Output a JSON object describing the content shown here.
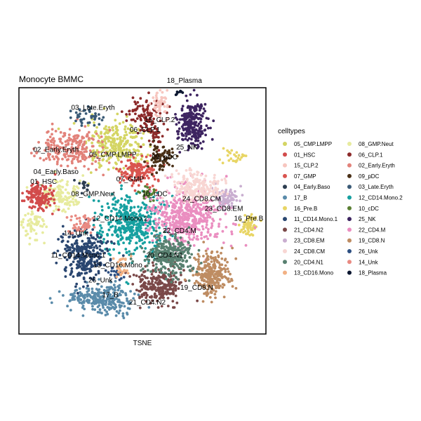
{
  "chart_data": {
    "type": "scatter",
    "title": "Monocyte BMMC",
    "xlabel": "TSNE",
    "ylabel": "",
    "xlim": [
      0,
      100
    ],
    "ylim": [
      0,
      100
    ],
    "grid": false,
    "legend": {
      "title": "celltypes",
      "placement": "right",
      "columns": 2
    },
    "series": [
      {
        "name": "05_CMP.LMPP",
        "color": "#D4D563",
        "clusters": [
          {
            "x": 40,
            "y": 76,
            "sx": 6,
            "sy": 5,
            "n": 260
          }
        ]
      },
      {
        "name": "08_GMP.Neut",
        "color": "#E7EB9E",
        "clusters": [
          {
            "x": 16,
            "y": 56,
            "sx": 4,
            "sy": 3,
            "n": 140
          },
          {
            "x": 6,
            "y": 44,
            "sx": 2.5,
            "sy": 3,
            "n": 60
          }
        ]
      },
      {
        "name": "01_HSC",
        "color": "#D24B4B",
        "clusters": [
          {
            "x": 8,
            "y": 56,
            "sx": 3,
            "sy": 3,
            "n": 150
          }
        ]
      },
      {
        "name": "06_CLP.1",
        "color": "#8C2A2A",
        "clusters": [
          {
            "x": 50,
            "y": 90,
            "sx": 3.5,
            "sy": 2.5,
            "n": 80
          },
          {
            "x": 54,
            "y": 82,
            "sx": 2,
            "sy": 3,
            "n": 50
          }
        ]
      },
      {
        "name": "15_CLP.2",
        "color": "#F7C6BF",
        "clusters": [
          {
            "x": 57,
            "y": 93,
            "sx": 2,
            "sy": 3,
            "n": 50
          }
        ]
      },
      {
        "name": "02_Early.Eryth",
        "color": "#E2827A",
        "clusters": [
          {
            "x": 22,
            "y": 76,
            "sx": 6,
            "sy": 4,
            "n": 220
          }
        ]
      },
      {
        "name": "07_GMP",
        "color": "#D9544F",
        "clusters": [
          {
            "x": 48,
            "y": 66,
            "sx": 3.5,
            "sy": 3,
            "n": 140
          }
        ]
      },
      {
        "name": "09_pDC",
        "color": "#4A3017",
        "clusters": [
          {
            "x": 57,
            "y": 72,
            "sx": 2.5,
            "sy": 3,
            "n": 80
          }
        ]
      },
      {
        "name": "04_Early.Baso",
        "color": "#2C3D50",
        "clusters": [
          {
            "x": 26,
            "y": 60,
            "sx": 1.5,
            "sy": 1.5,
            "n": 15
          }
        ]
      },
      {
        "name": "03_Late.Eryth",
        "color": "#3A5A76",
        "clusters": [
          {
            "x": 28,
            "y": 89,
            "sx": 3,
            "sy": 2,
            "n": 40
          }
        ]
      },
      {
        "name": "17_B",
        "color": "#5A8BAA",
        "clusters": [
          {
            "x": 36,
            "y": 14,
            "sx": 5,
            "sy": 3.5,
            "n": 200
          },
          {
            "x": 25,
            "y": 15,
            "sx": 4,
            "sy": 2,
            "n": 70
          }
        ]
      },
      {
        "name": "12_CD14.Mono.2",
        "color": "#16A0A0",
        "clusters": [
          {
            "x": 46,
            "y": 45,
            "sx": 6.5,
            "sy": 6,
            "n": 400
          }
        ]
      },
      {
        "name": "16_Pre.B",
        "color": "#E8D564",
        "clusters": [
          {
            "x": 93,
            "y": 44,
            "sx": 1.5,
            "sy": 2,
            "n": 70
          },
          {
            "x": 88,
            "y": 72,
            "sx": 3,
            "sy": 1.5,
            "n": 25
          }
        ]
      },
      {
        "name": "10_cDC",
        "color": "#5A7F33",
        "clusters": [
          {
            "x": 52,
            "y": 57,
            "sx": 1.5,
            "sy": 1.5,
            "n": 30
          }
        ]
      },
      {
        "name": "11_CD14.Mono.1",
        "color": "#2A4670",
        "clusters": [
          {
            "x": 27,
            "y": 32,
            "sx": 5,
            "sy": 5,
            "n": 300
          }
        ]
      },
      {
        "name": "25_NK",
        "color": "#3D2460",
        "clusters": [
          {
            "x": 70,
            "y": 85,
            "sx": 3,
            "sy": 4.5,
            "n": 250
          }
        ]
      },
      {
        "name": "21_CD4.N2",
        "color": "#7A4848",
        "clusters": [
          {
            "x": 57,
            "y": 20,
            "sx": 4.5,
            "sy": 3.5,
            "n": 260
          }
        ]
      },
      {
        "name": "22_CD4.M",
        "color": "#EA8EC0",
        "clusters": [
          {
            "x": 68,
            "y": 47,
            "sx": 7,
            "sy": 6,
            "n": 500
          }
        ]
      },
      {
        "name": "23_CD8.EM",
        "color": "#C9AED0",
        "clusters": [
          {
            "x": 84,
            "y": 56,
            "sx": 2.5,
            "sy": 2.5,
            "n": 80
          }
        ]
      },
      {
        "name": "19_CD8.N",
        "color": "#BE8C62",
        "clusters": [
          {
            "x": 78,
            "y": 24,
            "sx": 3.5,
            "sy": 4.5,
            "n": 260
          }
        ]
      },
      {
        "name": "24_CD8.CM",
        "color": "#F8D6D3",
        "clusters": [
          {
            "x": 72,
            "y": 60,
            "sx": 5,
            "sy": 3,
            "n": 200
          }
        ]
      },
      {
        "name": "26_Unk",
        "color": "#2D4F82",
        "clusters": [
          {
            "x": 40,
            "y": 24,
            "sx": 2,
            "sy": 1.5,
            "n": 20
          }
        ]
      },
      {
        "name": "20_CD4.N1",
        "color": "#588070",
        "clusters": [
          {
            "x": 61,
            "y": 32,
            "sx": 5,
            "sy": 4,
            "n": 300
          }
        ]
      },
      {
        "name": "14_Unk",
        "color": "#E98A82",
        "clusters": [
          {
            "x": 25,
            "y": 44,
            "sx": 2.5,
            "sy": 2,
            "n": 50
          }
        ]
      },
      {
        "name": "13_CD16.Mono",
        "color": "#F2B184",
        "clusters": [
          {
            "x": 42,
            "y": 28,
            "sx": 1.5,
            "sy": 2.5,
            "n": 30
          }
        ]
      },
      {
        "name": "18_Plasma",
        "color": "#0B1630",
        "clusters": [
          {
            "x": 65,
            "y": 98,
            "sx": 0.8,
            "sy": 0.8,
            "n": 8
          }
        ]
      }
    ],
    "cluster_labels": [
      {
        "text": "18_Plasma",
        "x": 67,
        "y": 102
      },
      {
        "text": "03_Late.Eryth",
        "x": 30,
        "y": 91
      },
      {
        "text": "15_CLP.2",
        "x": 57,
        "y": 86
      },
      {
        "text": "06_CLP.1",
        "x": 51,
        "y": 82
      },
      {
        "text": "02_Early.Eryth",
        "x": 15,
        "y": 74
      },
      {
        "text": "25_NK",
        "x": 68,
        "y": 75
      },
      {
        "text": "05_CMP.LMPP",
        "x": 38,
        "y": 72
      },
      {
        "text": "09_pDC",
        "x": 59,
        "y": 71
      },
      {
        "text": "04_Early.Baso",
        "x": 15,
        "y": 65
      },
      {
        "text": "07_GMP",
        "x": 45,
        "y": 62
      },
      {
        "text": "01_HSC",
        "x": 10,
        "y": 61
      },
      {
        "text": "08_GMP.Neut",
        "x": 30,
        "y": 56
      },
      {
        "text": "10_cDC",
        "x": 55,
        "y": 56
      },
      {
        "text": "24_CD8.CM",
        "x": 74,
        "y": 54
      },
      {
        "text": "23_CD8.EM",
        "x": 83,
        "y": 50
      },
      {
        "text": "12_CD14.Mono.2",
        "x": 41,
        "y": 46
      },
      {
        "text": "16_Pre.B",
        "x": 93,
        "y": 46
      },
      {
        "text": "22_CD4.M",
        "x": 65,
        "y": 41
      },
      {
        "text": "14_Unk",
        "x": 23,
        "y": 40
      },
      {
        "text": "20_CD4.N1",
        "x": 59,
        "y": 31
      },
      {
        "text": "11_CD14.Mono.1",
        "x": 24,
        "y": 31
      },
      {
        "text": "13_CD16.Mono",
        "x": 40,
        "y": 27
      },
      {
        "text": "26_Unk",
        "x": 33,
        "y": 21
      },
      {
        "text": "19_CD8.N",
        "x": 72,
        "y": 18
      },
      {
        "text": "17_B",
        "x": 37,
        "y": 15
      },
      {
        "text": "21_CD4.N2",
        "x": 52,
        "y": 12
      }
    ]
  }
}
